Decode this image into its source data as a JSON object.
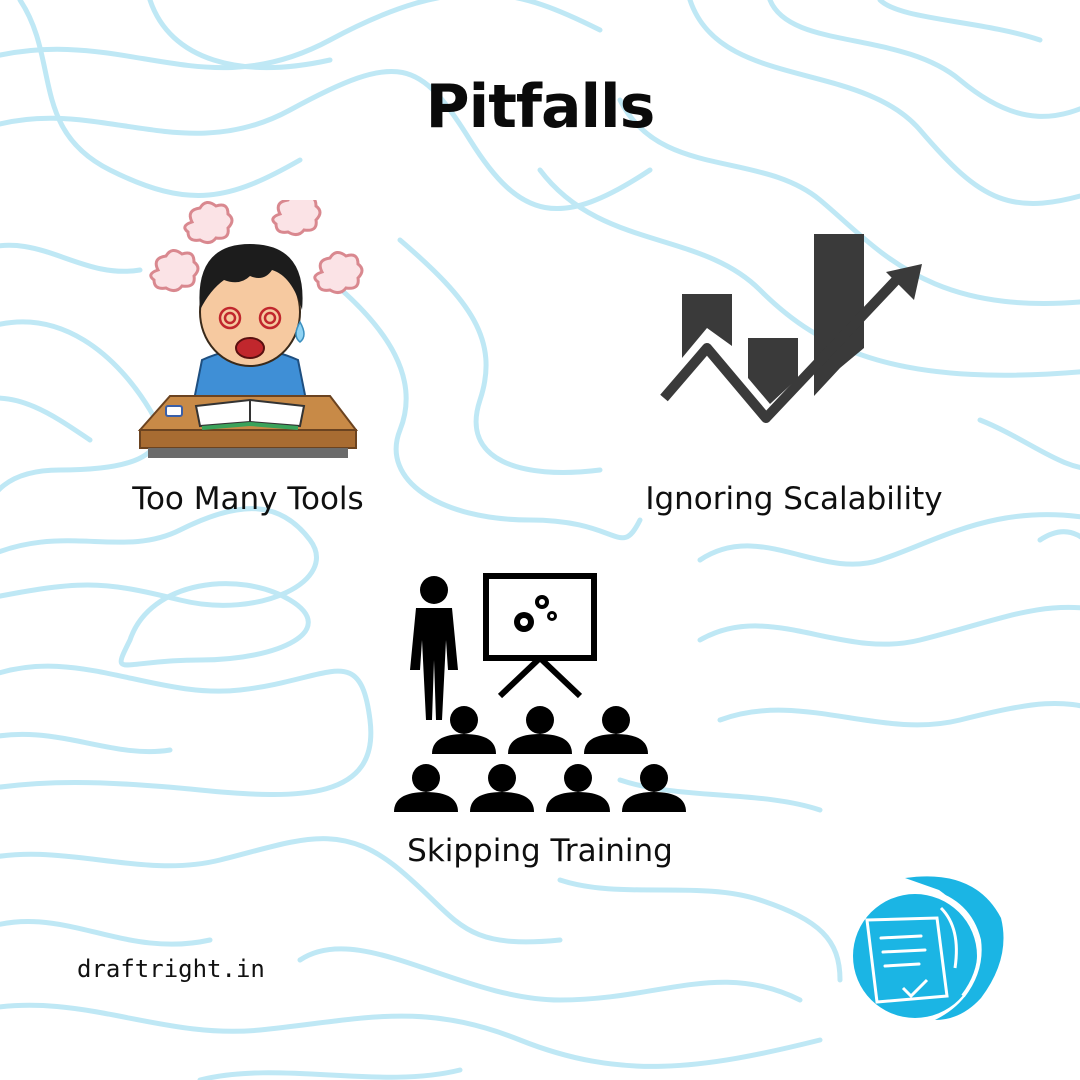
{
  "title": "Pitfalls",
  "items": [
    {
      "label": "Too Many Tools",
      "icon": "overwhelmed-student-icon"
    },
    {
      "label": "Ignoring Scalability",
      "icon": "bar-chart-arrow-icon"
    },
    {
      "label": "Skipping Training",
      "icon": "presentation-audience-icon"
    }
  ],
  "footer": {
    "domain": "draftright.in",
    "logo_icon": "quill-paper-logo"
  },
  "colors": {
    "contour_lines": "#bfe8f5",
    "logo_blue": "#1bb5e4",
    "icon_dark": "#3a3a3a",
    "text": "#0f0f0f"
  }
}
